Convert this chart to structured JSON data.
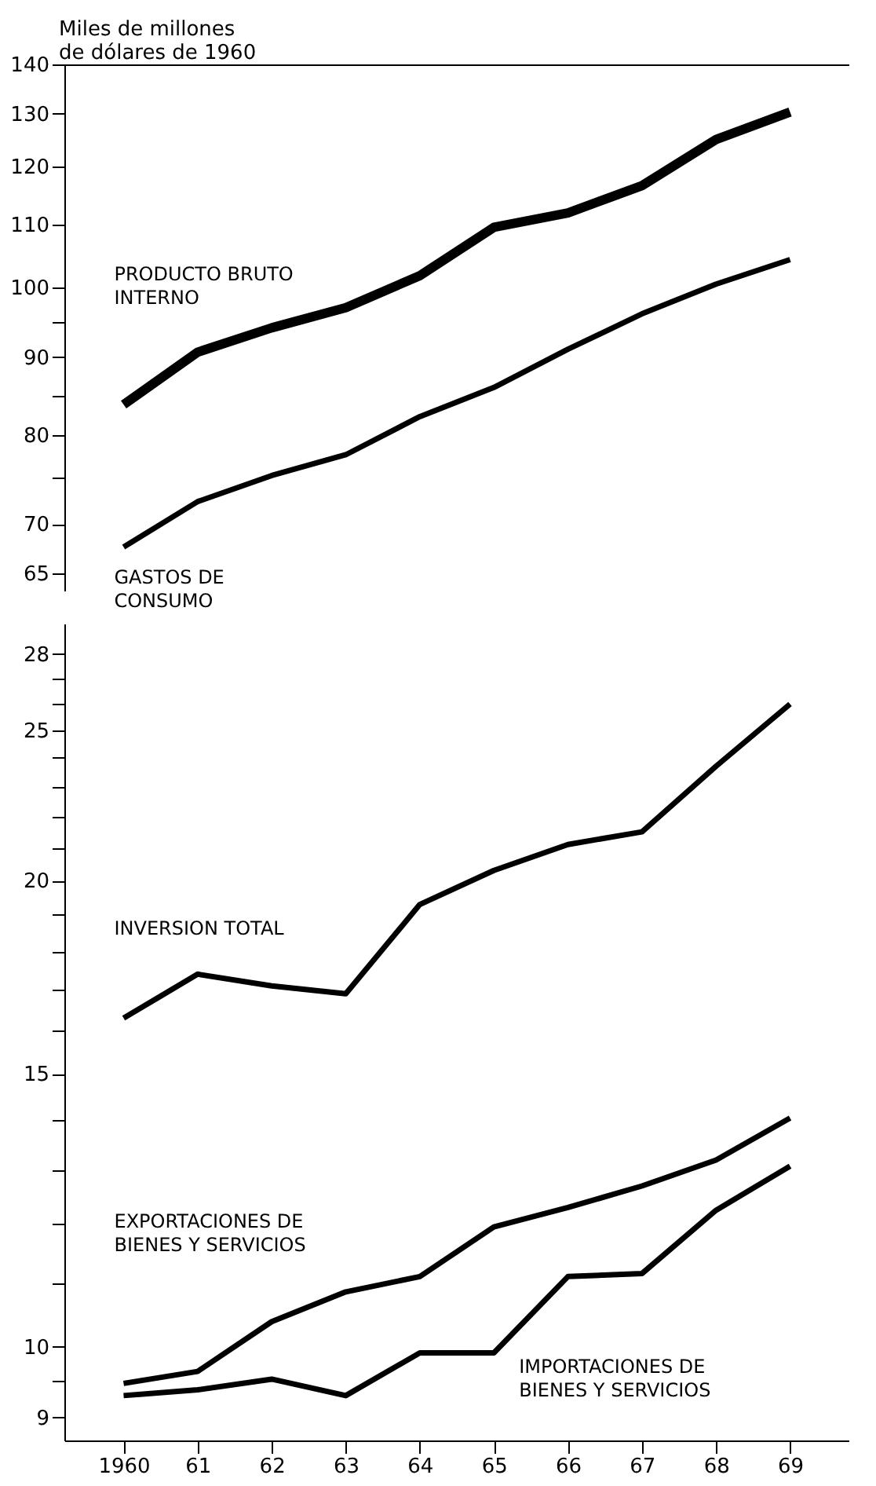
{
  "chart_data": [
    {
      "type": "line",
      "ylabel": "Miles de millones de dólares de 1960",
      "categories": [
        "1960",
        "61",
        "62",
        "63",
        "64",
        "65",
        "66",
        "67",
        "68",
        "69"
      ],
      "log": "y",
      "ylim": [
        63.3,
        140
      ],
      "yticks": [
        65,
        70,
        {
          "value": 75,
          "label": null
        },
        80,
        {
          "value": 85,
          "label": null
        },
        90,
        {
          "value": 95,
          "label": null
        },
        100,
        110,
        120,
        130,
        140
      ],
      "tick_labels": "y",
      "series": [
        {
          "name": "PRODUCTO BRUTO INTERNO",
          "color": "#000000",
          "values": [
            83.8,
            90.7,
            94.1,
            97.0,
            101.8,
            109.5,
            111.9,
            116.6,
            125,
            130.3
          ]
        },
        {
          "name": "GASTOS DE CONSUMO",
          "color": "#000000",
          "values": [
            67.6,
            72.4,
            75.3,
            77.7,
            82.3,
            86.0,
            91.1,
            96.1,
            100.5,
            104.3
          ]
        }
      ]
    },
    {
      "type": "line",
      "categories": [
        "1960",
        "61",
        "62",
        "63",
        "64",
        "65",
        "66",
        "67",
        "68",
        "69"
      ],
      "log": "y",
      "ylim": [
        8.7,
        29.3
      ],
      "yticks": [
        9,
        {
          "value": 9.5,
          "label": null
        },
        10,
        {
          "value": 11,
          "label": null
        },
        {
          "value": 12,
          "label": null
        },
        {
          "value": 13,
          "label": null
        },
        {
          "value": 14,
          "label": null
        },
        15,
        {
          "value": 16,
          "label": null
        },
        {
          "value": 17,
          "label": null
        },
        {
          "value": 18,
          "label": null
        },
        {
          "value": 19,
          "label": null
        },
        20,
        {
          "value": 21,
          "label": null
        },
        {
          "value": 22,
          "label": null
        },
        {
          "value": 23,
          "label": null
        },
        {
          "value": 24,
          "label": null
        },
        25,
        {
          "value": 26,
          "label": null
        },
        {
          "value": 27,
          "label": null
        },
        28
      ],
      "series": [
        {
          "name": "INVERSION TOTAL",
          "color": "#000000",
          "values": [
            16.3,
            17.4,
            17.1,
            16.9,
            19.3,
            20.3,
            21.1,
            21.5,
            23.7,
            26.0
          ]
        },
        {
          "name": "EXPORTACIONES DE BIENES Y SERVICIOS",
          "color": "#000000",
          "values": [
            9.47,
            9.64,
            10.38,
            10.85,
            11.1,
            11.95,
            12.3,
            12.7,
            13.2,
            14.05
          ]
        },
        {
          "name": "IMPORTACIONES DE BIENES Y SERVICIOS",
          "color": "#000000",
          "values": [
            9.3,
            9.38,
            9.53,
            9.3,
            9.91,
            9.91,
            11.1,
            11.15,
            12.25,
            13.08
          ]
        }
      ]
    }
  ]
}
